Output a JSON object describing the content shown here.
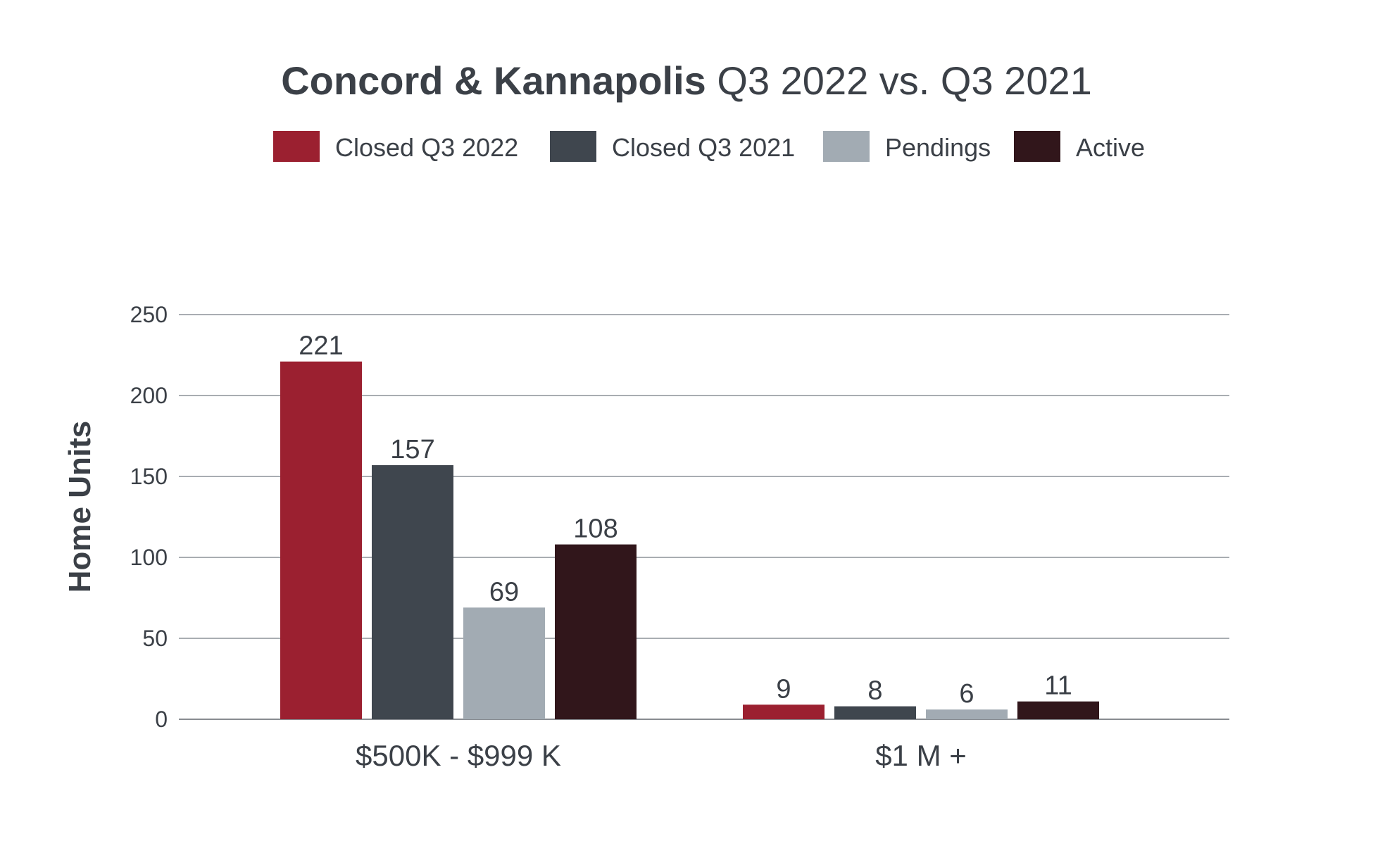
{
  "chart_data": {
    "type": "bar",
    "title_bold": "Concord & Kannapolis",
    "title_light": "Q3 2022 vs. Q3 2021",
    "xlabel": "",
    "ylabel": "Home Units",
    "ylim": [
      0,
      250
    ],
    "yticks": [
      0,
      50,
      100,
      150,
      200,
      250
    ],
    "grid": true,
    "legend_position": "top-center",
    "categories": [
      "$500K - $999 K",
      "$1 M +"
    ],
    "series": [
      {
        "name": "Closed Q3 2022",
        "color": "#9b2030",
        "values": [
          221,
          9
        ]
      },
      {
        "name": "Closed Q3 2021",
        "color": "#3f464e",
        "values": [
          157,
          8
        ]
      },
      {
        "name": "Pendings",
        "color": "#a2abb3",
        "values": [
          69,
          6
        ]
      },
      {
        "name": "Active",
        "color": "#31161b",
        "values": [
          108,
          11
        ]
      }
    ]
  }
}
